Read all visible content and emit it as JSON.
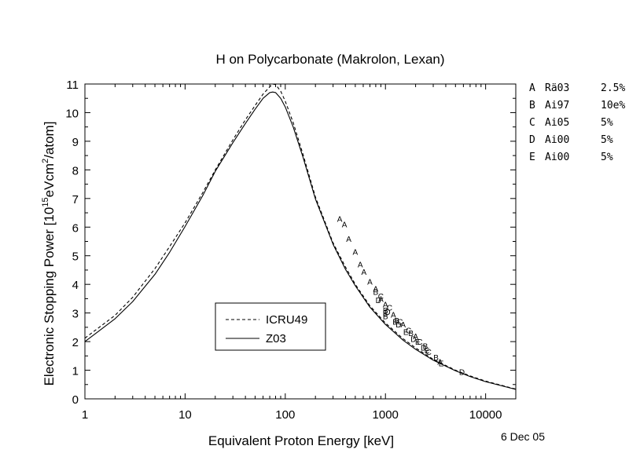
{
  "chart_data": {
    "type": "line",
    "title": "H on Polycarbonate (Makrolon, Lexan)",
    "xlabel": "Equivalent Proton Energy [keV]",
    "ylabel_parts": {
      "prefix": "Electronic Stopping Power [10",
      "exp1": "15",
      "mid": "eVcm",
      "exp2": "2",
      "suffix": "/atom]"
    },
    "x_scale": "log",
    "xlim": [
      1,
      20000
    ],
    "ylim": [
      0,
      11
    ],
    "x_ticks": [
      1,
      10,
      100,
      1000,
      10000
    ],
    "x_tick_labels": [
      "1",
      "10",
      "100",
      "1000",
      "10000"
    ],
    "y_ticks": [
      0,
      1,
      2,
      3,
      4,
      5,
      6,
      7,
      8,
      9,
      10,
      11
    ],
    "y_tick_labels": [
      "0",
      "1",
      "2",
      "3",
      "4",
      "5",
      "6",
      "7",
      "8",
      "9",
      "10",
      "11"
    ],
    "series": [
      {
        "name": "ICRU49",
        "style": "dashed",
        "x": [
          1,
          2,
          3,
          5,
          7,
          10,
          15,
          20,
          30,
          40,
          50,
          60,
          70,
          75,
          80,
          90,
          100,
          120,
          150,
          200,
          300,
          400,
          500,
          700,
          1000,
          1500,
          2000,
          3000,
          5000,
          7000,
          10000,
          20000
        ],
        "y": [
          2.12,
          2.92,
          3.55,
          4.55,
          5.32,
          6.15,
          7.2,
          8.0,
          9.05,
          9.75,
          10.25,
          10.65,
          10.9,
          11.0,
          10.98,
          10.75,
          10.4,
          9.65,
          8.55,
          7.05,
          5.45,
          4.6,
          4.0,
          3.25,
          2.65,
          2.1,
          1.78,
          1.38,
          1.0,
          0.8,
          0.62,
          0.34
        ]
      },
      {
        "name": "Z03",
        "style": "solid",
        "x": [
          1,
          2,
          3,
          5,
          7,
          10,
          15,
          20,
          30,
          40,
          50,
          60,
          70,
          75,
          80,
          90,
          100,
          120,
          150,
          200,
          300,
          400,
          500,
          700,
          1000,
          1500,
          2000,
          3000,
          5000,
          7000,
          10000,
          20000
        ],
        "y": [
          2.0,
          2.8,
          3.4,
          4.35,
          5.12,
          6.02,
          7.1,
          7.95,
          8.95,
          9.62,
          10.12,
          10.5,
          10.7,
          10.72,
          10.7,
          10.5,
          10.2,
          9.5,
          8.45,
          6.98,
          5.4,
          4.52,
          3.95,
          3.2,
          2.6,
          2.05,
          1.73,
          1.35,
          0.98,
          0.78,
          0.6,
          0.33
        ]
      }
    ],
    "points": [
      {
        "label": "A",
        "x": 350,
        "y": 6.3
      },
      {
        "label": "A",
        "x": 390,
        "y": 6.1
      },
      {
        "label": "A",
        "x": 430,
        "y": 5.6
      },
      {
        "label": "A",
        "x": 500,
        "y": 5.15
      },
      {
        "label": "A",
        "x": 560,
        "y": 4.7
      },
      {
        "label": "A",
        "x": 610,
        "y": 4.45
      },
      {
        "label": "A",
        "x": 700,
        "y": 4.1
      },
      {
        "label": "A",
        "x": 800,
        "y": 3.85
      },
      {
        "label": "A",
        "x": 900,
        "y": 3.5
      },
      {
        "label": "A",
        "x": 1000,
        "y": 3.3
      },
      {
        "label": "A",
        "x": 1200,
        "y": 2.95
      },
      {
        "label": "A",
        "x": 1500,
        "y": 2.6
      },
      {
        "label": "A",
        "x": 2000,
        "y": 2.2
      },
      {
        "label": "A",
        "x": 3500,
        "y": 1.3
      },
      {
        "label": "B",
        "x": 800,
        "y": 3.75
      },
      {
        "label": "B",
        "x": 1000,
        "y": 3.1
      },
      {
        "label": "B",
        "x": 1300,
        "y": 2.75
      },
      {
        "label": "B",
        "x": 1800,
        "y": 2.3
      },
      {
        "label": "B",
        "x": 2500,
        "y": 1.85
      },
      {
        "label": "B",
        "x": 3200,
        "y": 1.45
      },
      {
        "label": "C",
        "x": 900,
        "y": 3.6
      },
      {
        "label": "C",
        "x": 1100,
        "y": 3.2
      },
      {
        "label": "C",
        "x": 1400,
        "y": 2.7
      },
      {
        "label": "C",
        "x": 1700,
        "y": 2.4
      },
      {
        "label": "C",
        "x": 2200,
        "y": 2.0
      },
      {
        "label": "C",
        "x": 2700,
        "y": 1.65
      },
      {
        "label": "D",
        "x": 850,
        "y": 3.45
      },
      {
        "label": "D",
        "x": 1050,
        "y": 3.05
      },
      {
        "label": "D",
        "x": 1350,
        "y": 2.6
      },
      {
        "label": "D",
        "x": 1900,
        "y": 2.1
      },
      {
        "label": "D",
        "x": 2400,
        "y": 1.8
      },
      {
        "label": "D",
        "x": 5800,
        "y": 0.95
      },
      {
        "label": "E",
        "x": 1000,
        "y": 3.0
      },
      {
        "label": "E",
        "x": 1250,
        "y": 2.7
      },
      {
        "label": "E",
        "x": 1600,
        "y": 2.35
      },
      {
        "label": "E",
        "x": 2100,
        "y": 2.0
      },
      {
        "label": "E",
        "x": 2600,
        "y": 1.7
      },
      {
        "label": "E",
        "x": 3600,
        "y": 1.25
      },
      {
        "label": "B",
        "x": 1000,
        "y": 2.9
      }
    ],
    "legend": {
      "placement": "bottom-left",
      "entries": [
        {
          "label": "ICRU49",
          "style": "dashed"
        },
        {
          "label": "Z03",
          "style": "solid"
        }
      ]
    },
    "side_table": [
      {
        "letter": "A",
        "ref": "Rä03",
        "err": "2.5%"
      },
      {
        "letter": "B",
        "ref": "Ai97",
        "err": "10e%"
      },
      {
        "letter": "C",
        "ref": "Ai05",
        "err": "5%"
      },
      {
        "letter": "D",
        "ref": "Ai00",
        "err": "5%"
      },
      {
        "letter": "E",
        "ref": "Ai00",
        "err": "5%"
      }
    ],
    "date_label": "6 Dec 05",
    "grid": false
  }
}
